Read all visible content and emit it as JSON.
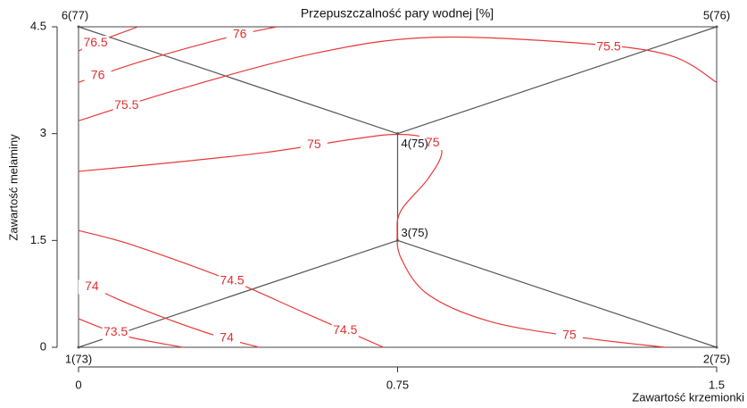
{
  "chart_data": {
    "type": "contour",
    "title": "Przepuszczalność pary wodnej [%]",
    "xlabel": "Zawartość krzemionki",
    "ylabel": "Zawartość melaminy",
    "xlim": [
      0,
      1.5
    ],
    "ylim": [
      0,
      4.5
    ],
    "xticks": [
      0,
      0.75,
      1.5
    ],
    "yticks": [
      0,
      1.5,
      3,
      4.5
    ],
    "color": "#e8393a",
    "contours": [
      {
        "level": 76.5,
        "x": [
          0,
          0.05,
          0.14
        ],
        "y": [
          4.16,
          4.3,
          4.5
        ]
      },
      {
        "level": 76,
        "x": [
          0,
          0.151,
          0.35,
          0.466
        ],
        "y": [
          3.72,
          4.02,
          4.35,
          4.5
        ]
      },
      {
        "level": 75.5,
        "x": [
          0,
          0.235,
          0.55,
          0.822,
          1.179,
          1.389,
          1.5
        ],
        "y": [
          3.18,
          3.62,
          4.12,
          4.35,
          4.27,
          4.1,
          3.72
        ]
      },
      {
        "level": 75,
        "x": [
          0,
          0.214,
          0.445,
          0.654,
          0.749,
          0.822,
          0.854,
          0.822,
          0.759,
          0.749,
          0.759,
          0.822,
          0.969,
          1.179,
          1.378
        ],
        "y": [
          2.47,
          2.59,
          2.74,
          2.93,
          2.99,
          2.93,
          2.74,
          2.37,
          1.93,
          1.62,
          1.24,
          0.74,
          0.36,
          0.14,
          0
        ]
      },
      {
        "level": 74.5,
        "x": [
          0,
          0.13,
          0.361,
          0.529,
          0.717
        ],
        "y": [
          1.64,
          1.43,
          0.93,
          0.49,
          0
        ]
      },
      {
        "level": 74,
        "x": [
          0,
          0.13,
          0.298,
          0.424
        ],
        "y": [
          0.93,
          0.58,
          0.21,
          0
        ]
      },
      {
        "level": 73.5,
        "x": [
          0,
          0.109,
          0.245
        ],
        "y": [
          0.4,
          0.16,
          0
        ]
      }
    ],
    "points": [
      {
        "label": "1(73)",
        "x": 0,
        "y": 0
      },
      {
        "label": "2(75)",
        "x": 1.5,
        "y": 0
      },
      {
        "label": "3(75)",
        "x": 0.75,
        "y": 1.5
      },
      {
        "label": "4(75)",
        "x": 0.75,
        "y": 3
      },
      {
        "label": "5(76)",
        "x": 1.5,
        "y": 4.5
      },
      {
        "label": "6(77)",
        "x": 0,
        "y": 4.5
      }
    ]
  }
}
